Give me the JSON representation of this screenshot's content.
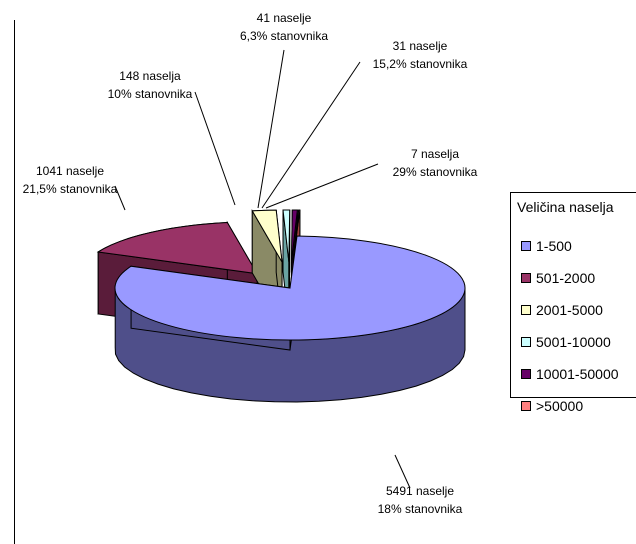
{
  "chart_data": {
    "type": "pie",
    "legend_title": "Veličina naselja",
    "legend_position": "right",
    "categories": [
      "1-500",
      "501-2000",
      "2001-5000",
      "5001-10000",
      "10001-50000",
      ">50000"
    ],
    "values": [
      5491,
      1041,
      148,
      41,
      31,
      7
    ],
    "colors": [
      "#9999ff",
      "#993366",
      "#ffffcc",
      "#ccffff",
      "#660066",
      "#ff8080"
    ],
    "side_colors": [
      "#4f4f8a",
      "#5a1c3a",
      "#8a8a66",
      "#6aa3a3",
      "#3a003a",
      "#a04040"
    ],
    "labels": [
      {
        "count": "5491 naselje",
        "share": "18% stanovnika"
      },
      {
        "count": "1041 naselje",
        "share": "21,5% stanovnika"
      },
      {
        "count": "148 naselja",
        "share": "10% stanovnika"
      },
      {
        "count": "41 naselje",
        "share": "6,3% stanovnika"
      },
      {
        "count": "31 naselje",
        "share": "15,2% stanovnika"
      },
      {
        "count": "7 naselja",
        "share": "29% stanovnika"
      }
    ]
  }
}
